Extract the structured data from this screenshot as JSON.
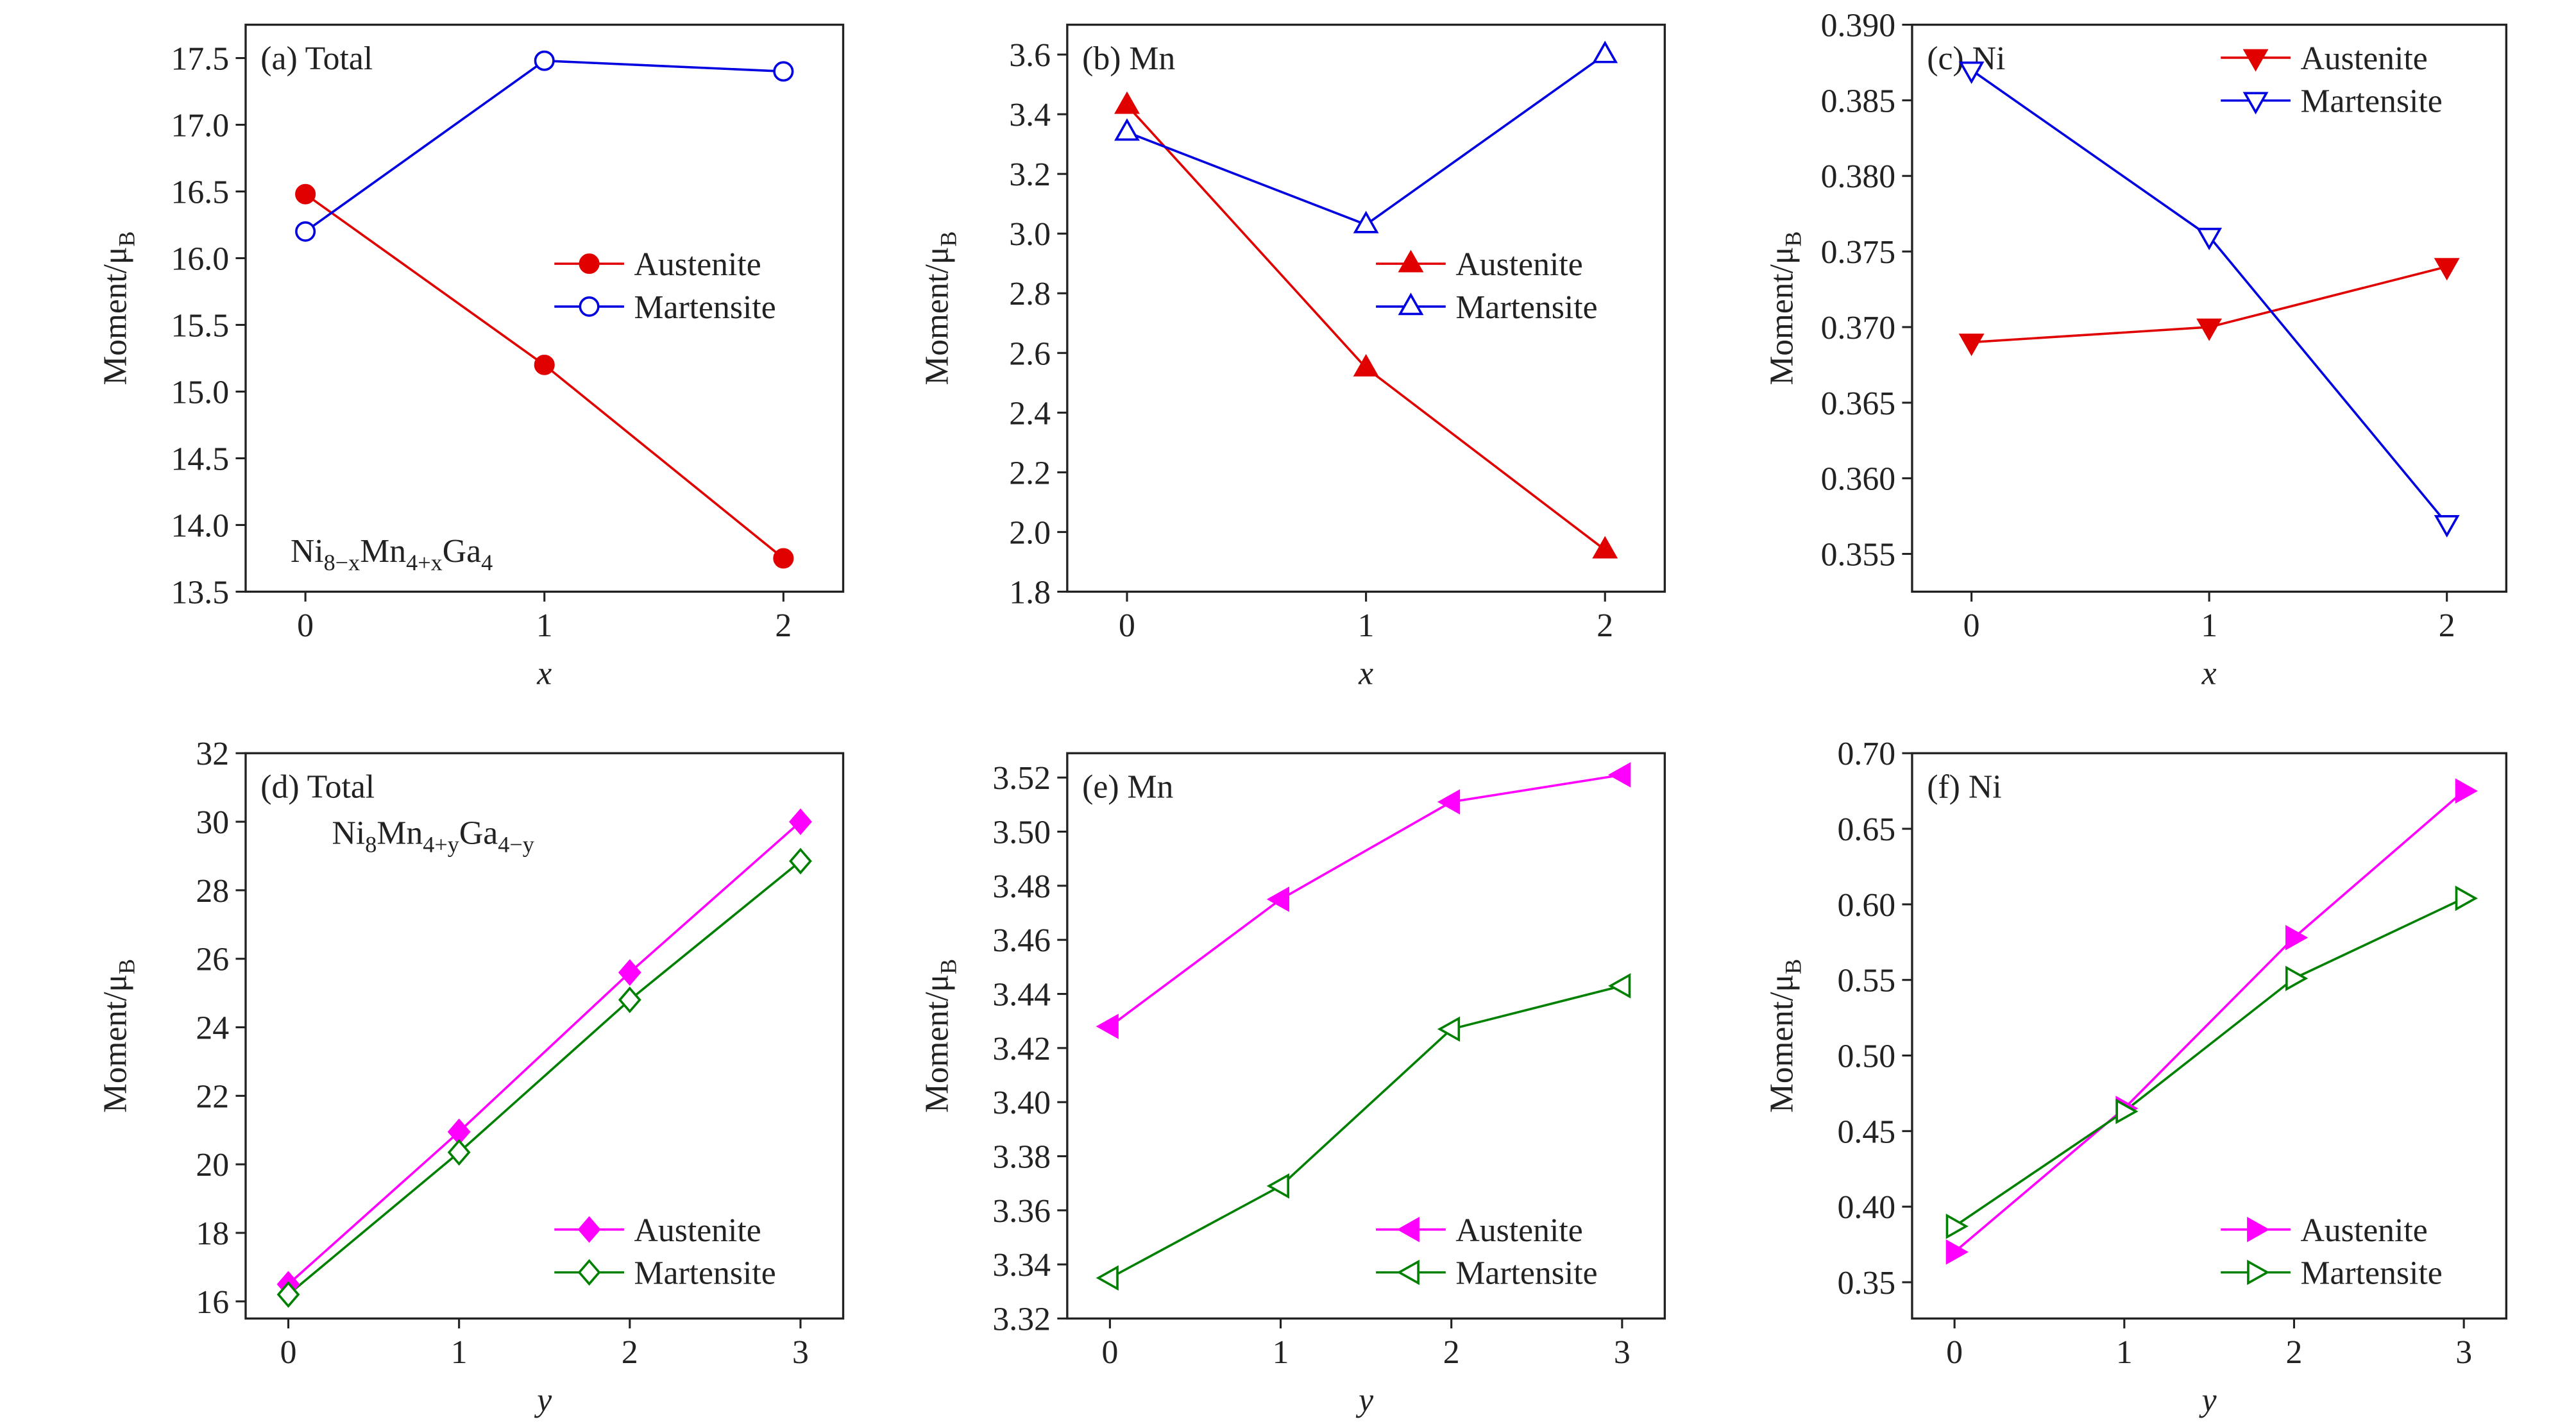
{
  "chart_data": [
    {
      "type": "line",
      "title": "(a) Total",
      "xlabel": "x",
      "ylabel": {
        "text": "Moment/μ",
        "sub": "B"
      },
      "annotation": [
        "Ni",
        "8−x",
        "Mn",
        "4+x",
        "Ga",
        "4"
      ],
      "annotation_loc": "lower left",
      "x": [
        0,
        1,
        2
      ],
      "xlim": [
        -0.25,
        2.25
      ],
      "xticks": [
        0,
        1,
        2
      ],
      "ylim": [
        13.5,
        17.75
      ],
      "yticks": [
        13.5,
        {
          "value": 14,
          "label": "14.0"
        },
        14.5,
        {
          "value": 15,
          "label": "15.0"
        },
        15.5,
        {
          "value": 16,
          "label": "16.0"
        },
        16.5,
        {
          "value": 17,
          "label": "17.0"
        },
        17.5
      ],
      "legend_loc": "center right",
      "series": [
        {
          "name": "Austenite",
          "color": "#e00000",
          "marker": "circle",
          "filled": true,
          "values": [
            16.48,
            15.2,
            13.75
          ]
        },
        {
          "name": "Martensite",
          "color": "#0000e0",
          "marker": "circle",
          "filled": false,
          "values": [
            16.2,
            17.48,
            17.4
          ]
        }
      ]
    },
    {
      "type": "line",
      "title": "(b) Mn",
      "xlabel": "x",
      "ylabel": {
        "text": "Moment/μ",
        "sub": "B"
      },
      "x": [
        0,
        1,
        2
      ],
      "xlim": [
        -0.25,
        2.25
      ],
      "xticks": [
        0,
        1,
        2
      ],
      "ylim": [
        1.8,
        3.7
      ],
      "yticks": [
        1.8,
        {
          "value": 2,
          "label": "2.0"
        },
        2.2,
        2.4,
        2.6,
        2.8,
        {
          "value": 3,
          "label": "3.0"
        },
        3.2,
        3.4,
        3.6
      ],
      "legend_loc": "center right",
      "series": [
        {
          "name": "Austenite",
          "color": "#e00000",
          "marker": "triangle-up",
          "filled": true,
          "values": [
            3.43,
            2.55,
            1.94
          ]
        },
        {
          "name": "Martensite",
          "color": "#0000e0",
          "marker": "triangle-up",
          "filled": false,
          "values": [
            3.34,
            3.03,
            3.6
          ]
        }
      ]
    },
    {
      "type": "line",
      "title": "(c) Ni",
      "xlabel": "x",
      "ylabel": {
        "text": "Moment/μ",
        "sub": "B"
      },
      "x": [
        0,
        1,
        2
      ],
      "xlim": [
        -0.25,
        2.25
      ],
      "xticks": [
        0,
        1,
        2
      ],
      "ylim": [
        0.3525,
        0.39
      ],
      "yticks": [
        0.355,
        {
          "value": 0.36,
          "label": "0.360"
        },
        0.365,
        {
          "value": 0.37,
          "label": "0.370"
        },
        0.375,
        {
          "value": 0.38,
          "label": "0.380"
        },
        0.385,
        {
          "value": 0.39,
          "label": "0.390"
        }
      ],
      "legend_loc": "upper right",
      "series": [
        {
          "name": "Austenite",
          "color": "#e00000",
          "marker": "triangle-down",
          "filled": true,
          "values": [
            0.369,
            0.37,
            0.374
          ]
        },
        {
          "name": "Martensite",
          "color": "#0000e0",
          "marker": "triangle-down",
          "filled": false,
          "values": [
            0.387,
            0.376,
            0.357
          ]
        }
      ]
    },
    {
      "type": "line",
      "title": "(d) Total",
      "xlabel": "y",
      "ylabel": {
        "text": "Moment/μ",
        "sub": "B"
      },
      "annotation": [
        "Ni",
        "8",
        "Mn",
        "4+y",
        "Ga",
        "4−y"
      ],
      "annotation_loc": "upper left",
      "x": [
        0,
        1,
        2,
        3
      ],
      "xlim": [
        -0.25,
        3.25
      ],
      "xticks": [
        0,
        1,
        2,
        3
      ],
      "ylim": [
        15.5,
        32
      ],
      "yticks": [
        16,
        18,
        20,
        22,
        24,
        26,
        28,
        30,
        32
      ],
      "legend_loc": "lower right",
      "series": [
        {
          "name": "Austenite",
          "color": "#ff00ff",
          "marker": "diamond",
          "filled": true,
          "values": [
            16.5,
            20.95,
            25.6,
            30.0
          ]
        },
        {
          "name": "Martensite",
          "color": "#008000",
          "marker": "diamond",
          "filled": false,
          "values": [
            16.2,
            20.35,
            24.8,
            28.85
          ]
        }
      ]
    },
    {
      "type": "line",
      "title": "(e) Mn",
      "xlabel": "y",
      "ylabel": {
        "text": "Moment/μ",
        "sub": "B"
      },
      "x": [
        0,
        1,
        2,
        3
      ],
      "xlim": [
        -0.25,
        3.25
      ],
      "xticks": [
        0,
        1,
        2,
        3
      ],
      "ylim": [
        3.32,
        3.529
      ],
      "yticks": [
        3.32,
        3.34,
        3.36,
        3.38,
        {
          "value": 3.4,
          "label": "3.40"
        },
        3.42,
        3.44,
        3.46,
        3.48,
        {
          "value": 3.5,
          "label": "3.50"
        },
        3.52
      ],
      "legend_loc": "lower right",
      "series": [
        {
          "name": "Austenite",
          "color": "#ff00ff",
          "marker": "triangle-left",
          "filled": true,
          "values": [
            3.428,
            3.475,
            3.511,
            3.521
          ]
        },
        {
          "name": "Martensite",
          "color": "#008000",
          "marker": "triangle-left",
          "filled": false,
          "values": [
            3.335,
            3.369,
            3.427,
            3.443
          ]
        }
      ]
    },
    {
      "type": "line",
      "title": "(f) Ni",
      "xlabel": "y",
      "ylabel": {
        "text": "Moment/μ",
        "sub": "B"
      },
      "x": [
        0,
        1,
        2,
        3
      ],
      "xlim": [
        -0.25,
        3.25
      ],
      "xticks": [
        0,
        1,
        2,
        3
      ],
      "ylim": [
        0.326,
        0.7
      ],
      "yticks": [
        0.35,
        {
          "value": 0.4,
          "label": "0.40"
        },
        0.45,
        {
          "value": 0.5,
          "label": "0.50"
        },
        0.55,
        {
          "value": 0.6,
          "label": "0.60"
        },
        0.65,
        {
          "value": 0.7,
          "label": "0.70"
        }
      ],
      "legend_loc": "lower right",
      "series": [
        {
          "name": "Austenite",
          "color": "#ff00ff",
          "marker": "triangle-right",
          "filled": true,
          "values": [
            0.37,
            0.465,
            0.578,
            0.675
          ]
        },
        {
          "name": "Martensite",
          "color": "#008000",
          "marker": "triangle-right",
          "filled": false,
          "values": [
            0.387,
            0.463,
            0.551,
            0.604
          ]
        }
      ]
    }
  ]
}
